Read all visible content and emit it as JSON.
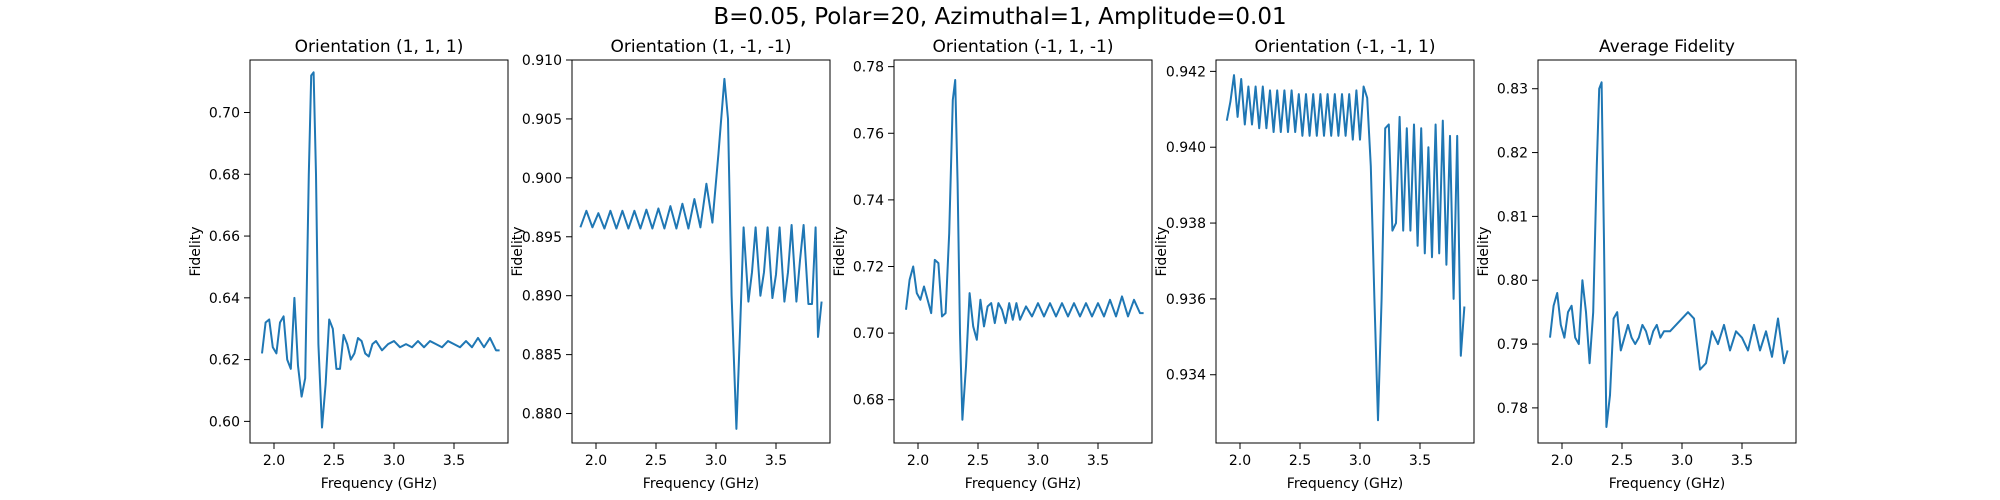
{
  "figure": {
    "suptitle": "B=0.05, Polar=20, Azimuthal=1, Amplitude=0.01"
  },
  "colors": {
    "line": "#1f77b4",
    "axes": "#000000",
    "background": "#ffffff"
  },
  "chart_data": [
    {
      "type": "line",
      "title": "Orientation (1, 1, 1)",
      "xlabel": "Frequency (GHz)",
      "ylabel": "Fidelity",
      "xlim": [
        1.8,
        3.95
      ],
      "ylim": [
        0.593,
        0.717
      ],
      "xticks": [
        "2.0",
        "2.5",
        "3.0",
        "3.5"
      ],
      "yticks": [
        "0.60",
        "0.62",
        "0.64",
        "0.66",
        "0.68",
        "0.70"
      ],
      "grid": false,
      "series": [
        {
          "x": [
            1.9,
            1.93,
            1.96,
            1.99,
            2.02,
            2.05,
            2.08,
            2.11,
            2.14,
            2.17,
            2.2,
            2.23,
            2.26,
            2.29,
            2.31,
            2.33,
            2.35,
            2.37,
            2.4,
            2.43,
            2.46,
            2.49,
            2.52,
            2.55,
            2.58,
            2.61,
            2.64,
            2.67,
            2.7,
            2.73,
            2.76,
            2.79,
            2.82,
            2.85,
            2.9,
            2.95,
            3.0,
            3.05,
            3.1,
            3.15,
            3.2,
            3.25,
            3.3,
            3.35,
            3.4,
            3.45,
            3.5,
            3.55,
            3.6,
            3.65,
            3.7,
            3.75,
            3.8,
            3.85,
            3.88
          ],
          "y": [
            0.622,
            0.632,
            0.633,
            0.624,
            0.622,
            0.632,
            0.634,
            0.62,
            0.617,
            0.64,
            0.618,
            0.608,
            0.614,
            0.68,
            0.712,
            0.713,
            0.68,
            0.625,
            0.598,
            0.612,
            0.633,
            0.63,
            0.617,
            0.617,
            0.628,
            0.625,
            0.62,
            0.622,
            0.627,
            0.626,
            0.622,
            0.621,
            0.625,
            0.626,
            0.623,
            0.625,
            0.626,
            0.624,
            0.625,
            0.624,
            0.626,
            0.624,
            0.626,
            0.625,
            0.624,
            0.626,
            0.625,
            0.624,
            0.626,
            0.624,
            0.627,
            0.624,
            0.627,
            0.623,
            0.623
          ]
        }
      ]
    },
    {
      "type": "line",
      "title": "Orientation (1, -1, -1)",
      "xlabel": "Frequency (GHz)",
      "ylabel": "Fidelity",
      "xlim": [
        1.8,
        3.95
      ],
      "ylim": [
        0.8775,
        0.91
      ],
      "xticks": [
        "2.0",
        "2.5",
        "3.0",
        "3.5"
      ],
      "yticks": [
        "0.880",
        "0.885",
        "0.890",
        "0.895",
        "0.900",
        "0.905",
        "0.910"
      ],
      "grid": false,
      "series": [
        {
          "x": [
            1.87,
            1.92,
            1.97,
            2.02,
            2.07,
            2.12,
            2.17,
            2.22,
            2.27,
            2.32,
            2.37,
            2.42,
            2.47,
            2.52,
            2.57,
            2.62,
            2.67,
            2.72,
            2.77,
            2.82,
            2.87,
            2.92,
            2.97,
            3.02,
            3.07,
            3.1,
            3.13,
            3.17,
            3.2,
            3.23,
            3.27,
            3.3,
            3.33,
            3.37,
            3.4,
            3.43,
            3.47,
            3.5,
            3.53,
            3.57,
            3.6,
            3.63,
            3.67,
            3.7,
            3.73,
            3.77,
            3.8,
            3.83,
            3.85,
            3.88
          ],
          "y": [
            0.8958,
            0.8972,
            0.8958,
            0.897,
            0.8957,
            0.8972,
            0.8957,
            0.8972,
            0.8957,
            0.8972,
            0.8957,
            0.8973,
            0.8957,
            0.8974,
            0.8957,
            0.8976,
            0.8957,
            0.8978,
            0.8957,
            0.8982,
            0.8958,
            0.8995,
            0.8962,
            0.902,
            0.9084,
            0.905,
            0.89,
            0.8787,
            0.887,
            0.8958,
            0.8895,
            0.892,
            0.8958,
            0.89,
            0.892,
            0.8958,
            0.8898,
            0.8918,
            0.8958,
            0.8895,
            0.892,
            0.896,
            0.8895,
            0.893,
            0.896,
            0.8893,
            0.8893,
            0.8958,
            0.8865,
            0.8895
          ]
        }
      ]
    },
    {
      "type": "line",
      "title": "Orientation (-1, 1, -1)",
      "xlabel": "Frequency (GHz)",
      "ylabel": "Fidelity",
      "xlim": [
        1.8,
        3.95
      ],
      "ylim": [
        0.667,
        0.782
      ],
      "xticks": [
        "2.0",
        "2.5",
        "3.0",
        "3.5"
      ],
      "yticks": [
        "0.68",
        "0.70",
        "0.72",
        "0.74",
        "0.76",
        "0.78"
      ],
      "grid": false,
      "series": [
        {
          "x": [
            1.9,
            1.93,
            1.96,
            1.99,
            2.02,
            2.05,
            2.08,
            2.11,
            2.14,
            2.17,
            2.2,
            2.23,
            2.26,
            2.29,
            2.31,
            2.33,
            2.35,
            2.37,
            2.4,
            2.43,
            2.46,
            2.49,
            2.52,
            2.55,
            2.58,
            2.61,
            2.64,
            2.67,
            2.7,
            2.73,
            2.76,
            2.79,
            2.82,
            2.85,
            2.9,
            2.95,
            3.0,
            3.05,
            3.1,
            3.15,
            3.2,
            3.25,
            3.3,
            3.35,
            3.4,
            3.45,
            3.5,
            3.55,
            3.6,
            3.65,
            3.7,
            3.75,
            3.8,
            3.85,
            3.88
          ],
          "y": [
            0.707,
            0.716,
            0.72,
            0.712,
            0.71,
            0.714,
            0.71,
            0.706,
            0.722,
            0.721,
            0.705,
            0.706,
            0.73,
            0.77,
            0.776,
            0.745,
            0.7,
            0.674,
            0.69,
            0.712,
            0.702,
            0.698,
            0.71,
            0.702,
            0.708,
            0.709,
            0.703,
            0.709,
            0.707,
            0.703,
            0.709,
            0.704,
            0.709,
            0.704,
            0.708,
            0.705,
            0.709,
            0.705,
            0.709,
            0.705,
            0.709,
            0.705,
            0.709,
            0.705,
            0.709,
            0.705,
            0.709,
            0.705,
            0.71,
            0.705,
            0.711,
            0.705,
            0.71,
            0.706,
            0.706
          ]
        }
      ]
    },
    {
      "type": "line",
      "title": "Orientation (-1, -1, 1)",
      "xlabel": "Frequency (GHz)",
      "ylabel": "Fidelity",
      "xlim": [
        1.8,
        3.95
      ],
      "ylim": [
        0.9322,
        0.9423
      ],
      "xticks": [
        "2.0",
        "2.5",
        "3.0",
        "3.5"
      ],
      "yticks": [
        "0.934",
        "0.936",
        "0.938",
        "0.940",
        "0.942"
      ],
      "grid": false,
      "series": [
        {
          "x": [
            1.89,
            1.92,
            1.95,
            1.98,
            2.01,
            2.04,
            2.07,
            2.1,
            2.13,
            2.16,
            2.19,
            2.22,
            2.25,
            2.28,
            2.31,
            2.34,
            2.37,
            2.4,
            2.43,
            2.46,
            2.49,
            2.52,
            2.55,
            2.58,
            2.61,
            2.64,
            2.67,
            2.7,
            2.73,
            2.76,
            2.79,
            2.82,
            2.85,
            2.88,
            2.91,
            2.94,
            2.97,
            3.0,
            3.03,
            3.06,
            3.09,
            3.12,
            3.15,
            3.18,
            3.21,
            3.24,
            3.27,
            3.3,
            3.33,
            3.36,
            3.39,
            3.42,
            3.45,
            3.48,
            3.51,
            3.54,
            3.57,
            3.6,
            3.63,
            3.66,
            3.69,
            3.72,
            3.75,
            3.78,
            3.81,
            3.84,
            3.87
          ],
          "y": [
            0.9407,
            0.9412,
            0.9419,
            0.9408,
            0.9418,
            0.9406,
            0.9416,
            0.9406,
            0.9416,
            0.9405,
            0.9416,
            0.9405,
            0.9415,
            0.9404,
            0.9415,
            0.9404,
            0.9415,
            0.9404,
            0.9415,
            0.9404,
            0.9414,
            0.9403,
            0.9414,
            0.9403,
            0.9414,
            0.9403,
            0.9414,
            0.9403,
            0.9414,
            0.9403,
            0.9414,
            0.9403,
            0.9414,
            0.9403,
            0.9414,
            0.9402,
            0.9415,
            0.9402,
            0.9416,
            0.9413,
            0.9395,
            0.936,
            0.9328,
            0.936,
            0.9405,
            0.9406,
            0.9378,
            0.938,
            0.9408,
            0.9378,
            0.9405,
            0.9378,
            0.9406,
            0.9374,
            0.9405,
            0.9372,
            0.94,
            0.9371,
            0.9406,
            0.9372,
            0.9407,
            0.9369,
            0.9403,
            0.936,
            0.9403,
            0.9345,
            0.9358
          ]
        }
      ]
    },
    {
      "type": "line",
      "title": "Average Fidelity",
      "xlabel": "Frequency (GHz)",
      "ylabel": "Fidelity",
      "xlim": [
        1.8,
        3.95
      ],
      "ylim": [
        0.7745,
        0.8345
      ],
      "xticks": [
        "2.0",
        "2.5",
        "3.0",
        "3.5"
      ],
      "yticks": [
        "0.78",
        "0.79",
        "0.80",
        "0.81",
        "0.82",
        "0.83"
      ],
      "grid": false,
      "series": [
        {
          "x": [
            1.9,
            1.93,
            1.96,
            1.99,
            2.02,
            2.05,
            2.08,
            2.11,
            2.14,
            2.17,
            2.2,
            2.23,
            2.26,
            2.29,
            2.31,
            2.33,
            2.35,
            2.37,
            2.4,
            2.43,
            2.46,
            2.49,
            2.52,
            2.55,
            2.58,
            2.61,
            2.64,
            2.67,
            2.7,
            2.73,
            2.76,
            2.79,
            2.82,
            2.85,
            2.9,
            2.95,
            3.0,
            3.05,
            3.1,
            3.15,
            3.2,
            3.25,
            3.3,
            3.35,
            3.4,
            3.45,
            3.5,
            3.55,
            3.6,
            3.65,
            3.7,
            3.75,
            3.8,
            3.85,
            3.88
          ],
          "y": [
            0.791,
            0.796,
            0.798,
            0.793,
            0.791,
            0.795,
            0.796,
            0.791,
            0.79,
            0.8,
            0.795,
            0.787,
            0.795,
            0.818,
            0.83,
            0.831,
            0.806,
            0.777,
            0.782,
            0.794,
            0.795,
            0.789,
            0.791,
            0.793,
            0.791,
            0.79,
            0.791,
            0.793,
            0.792,
            0.79,
            0.792,
            0.793,
            0.791,
            0.792,
            0.792,
            0.793,
            0.794,
            0.795,
            0.794,
            0.786,
            0.787,
            0.792,
            0.79,
            0.793,
            0.789,
            0.792,
            0.791,
            0.789,
            0.793,
            0.789,
            0.792,
            0.788,
            0.794,
            0.787,
            0.789
          ]
        }
      ]
    }
  ]
}
